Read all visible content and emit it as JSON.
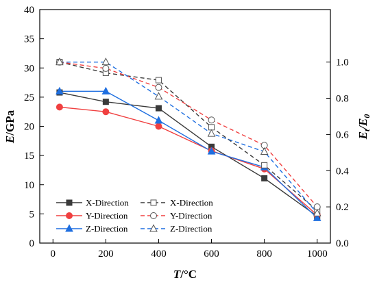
{
  "chart_data": {
    "type": "line",
    "x": [
      25,
      200,
      400,
      600,
      800,
      1000
    ],
    "xlim": [
      -50,
      1050
    ],
    "xticks": [
      0,
      200,
      400,
      600,
      800,
      1000
    ],
    "xlabel": {
      "main": "T",
      "rest": "/°C"
    },
    "ylim": [
      0,
      40
    ],
    "yticks": [
      0,
      5,
      10,
      15,
      20,
      25,
      30,
      35,
      40
    ],
    "ylabel": {
      "main": "E",
      "rest": "/GPa"
    },
    "y2lim": [
      0,
      1.29
    ],
    "y2ticks": [
      "0.0",
      "0.2",
      "0.4",
      "0.6",
      "0.8",
      "1.0"
    ],
    "y2label": {
      "main": "E",
      "sub1": "t",
      "slash": "/",
      "main2": "E",
      "sub2": "0"
    },
    "grid": false,
    "legend_position": "bottom-left",
    "series": [
      {
        "name": "X-Direction",
        "axis": "left",
        "style": "solid",
        "marker": "square",
        "filled": true,
        "color": "#3a3a3a",
        "values": [
          25.8,
          24.2,
          23.1,
          16.5,
          11.1,
          4.6
        ]
      },
      {
        "name": "Y-Direction",
        "axis": "left",
        "style": "solid",
        "marker": "circle",
        "filled": true,
        "color": "#f04040",
        "values": [
          23.3,
          22.5,
          20.0,
          15.8,
          12.7,
          4.8
        ]
      },
      {
        "name": "Z-Direction",
        "axis": "left",
        "style": "solid",
        "marker": "triangle",
        "filled": true,
        "color": "#1f6fe0",
        "values": [
          26.0,
          26.0,
          21.0,
          15.7,
          13.0,
          4.3
        ]
      },
      {
        "name": "X-Direction",
        "axis": "right",
        "style": "dashed",
        "marker": "square",
        "filled": false,
        "color": "#3a3a3a",
        "values": [
          1.0,
          0.94,
          0.9,
          0.64,
          0.43,
          0.18
        ]
      },
      {
        "name": "Y-Direction",
        "axis": "right",
        "style": "dashed",
        "marker": "circle",
        "filled": false,
        "color": "#f04040",
        "values": [
          1.0,
          0.965,
          0.86,
          0.68,
          0.54,
          0.2
        ]
      },
      {
        "name": "Z-Direction",
        "axis": "right",
        "style": "dashed",
        "marker": "triangle",
        "filled": false,
        "color": "#1f6fe0",
        "values": [
          1.0,
          1.0,
          0.81,
          0.605,
          0.505,
          0.165
        ]
      }
    ]
  }
}
